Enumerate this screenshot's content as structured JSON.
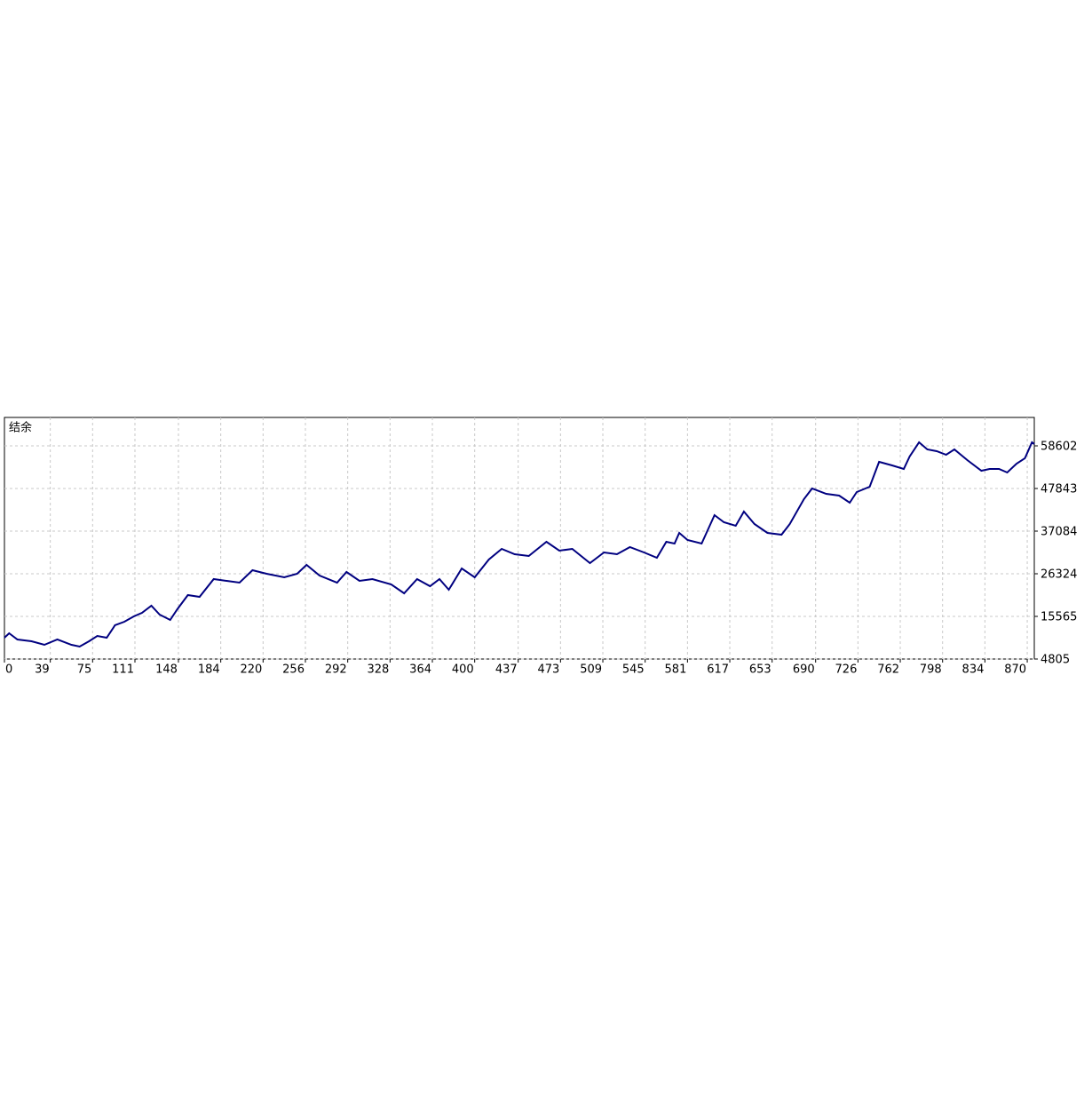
{
  "chart_data": {
    "type": "line",
    "title": "结余",
    "x": [
      0,
      4,
      11,
      23,
      34,
      45,
      57,
      64,
      72,
      79,
      87,
      94,
      102,
      110,
      117,
      125,
      132,
      141,
      147,
      156,
      166,
      178,
      189,
      200,
      211,
      223,
      238,
      249,
      257,
      268,
      283,
      291,
      302,
      313,
      329,
      340,
      351,
      362,
      370,
      378,
      389,
      400,
      412,
      423,
      434,
      446,
      461,
      472,
      483,
      498,
      510,
      521,
      532,
      544,
      555,
      563,
      570,
      574,
      581,
      593,
      604,
      612,
      622,
      629,
      638,
      649,
      661,
      668,
      680,
      687,
      699,
      710,
      719,
      725,
      736,
      744,
      755,
      765,
      770,
      778,
      785,
      793,
      801,
      808,
      819,
      831,
      838,
      846,
      853,
      861,
      868,
      874,
      876
    ],
    "values": [
      10185,
      11305,
      9736,
      9288,
      8391,
      9736,
      8391,
      7943,
      9288,
      10633,
      10185,
      13323,
      14219,
      15564,
      16461,
      18254,
      16013,
      14668,
      17357,
      20944,
      20496,
      24979,
      24530,
      24082,
      27220,
      26323,
      25427,
      26323,
      28565,
      25875,
      24082,
      26772,
      24530,
      24979,
      23634,
      21392,
      24979,
      23185,
      24979,
      22289,
      27668,
      25427,
      29910,
      32600,
      31255,
      30806,
      34393,
      32151,
      32600,
      29013,
      31703,
      31255,
      33048,
      31703,
      30358,
      34393,
      33945,
      36634,
      34841,
      33945,
      41117,
      39324,
      38428,
      42014,
      38876,
      36634,
      36186,
      38876,
      45152,
      47842,
      46497,
      46049,
      44255,
      46945,
      48290,
      54566,
      53670,
      52773,
      55911,
      59498,
      57704,
      57256,
      56360,
      57704,
      55015,
      52325,
      52773,
      52773,
      51877,
      54118,
      55463,
      59498,
      59049
    ],
    "color": "#000080",
    "xlim": [
      0,
      876
    ],
    "xticks": [
      0,
      39,
      75,
      111,
      148,
      184,
      220,
      256,
      292,
      328,
      364,
      400,
      437,
      473,
      509,
      545,
      581,
      617,
      653,
      690,
      726,
      762,
      798,
      834,
      870
    ],
    "ylim": [
      4805,
      65774
    ],
    "yticks": [
      4805,
      15565,
      26324,
      37084,
      47843,
      58602
    ],
    "grid": true
  }
}
